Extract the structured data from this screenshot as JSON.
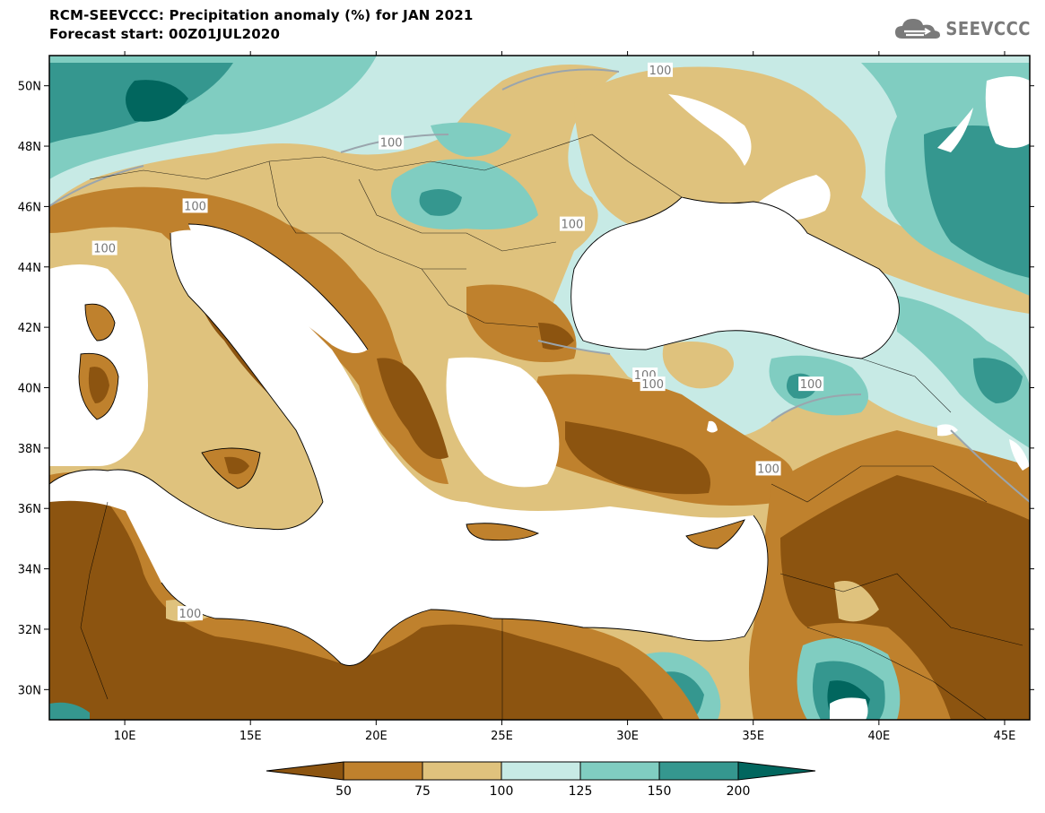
{
  "header": {
    "title_line1": "RCM-SEEVCCC: Precipitation anomaly (%) for JAN 2021",
    "title_line2": "Forecast start: 00Z01JUL2020",
    "logo_text": "SEEVCCC"
  },
  "map": {
    "lon_range": [
      7,
      46
    ],
    "lat_range": [
      29,
      51
    ],
    "x_ticks": [
      "10E",
      "15E",
      "20E",
      "25E",
      "30E",
      "35E",
      "40E",
      "45E"
    ],
    "y_ticks": [
      "50N",
      "48N",
      "46N",
      "44N",
      "42N",
      "40N",
      "38N",
      "36N",
      "34N",
      "32N",
      "30N"
    ],
    "contour_labels": [
      {
        "text": "100",
        "lon": 31.3,
        "lat": 50.5
      },
      {
        "text": "100",
        "lon": 20.6,
        "lat": 48.1
      },
      {
        "text": "100",
        "lon": 12.8,
        "lat": 46.0
      },
      {
        "text": "100",
        "lon": 27.8,
        "lat": 45.4
      },
      {
        "text": "100",
        "lon": 9.2,
        "lat": 44.6
      },
      {
        "text": "100",
        "lon": 30.7,
        "lat": 40.4
      },
      {
        "text": "100",
        "lon": 31.0,
        "lat": 40.1
      },
      {
        "text": "100",
        "lon": 37.3,
        "lat": 40.1
      },
      {
        "text": "100",
        "lon": 35.6,
        "lat": 37.3
      },
      {
        "text": "100",
        "lon": 12.6,
        "lat": 32.5
      }
    ]
  },
  "colorbar": {
    "levels": [
      "50",
      "75",
      "100",
      "125",
      "150",
      "200"
    ],
    "colors": [
      "#8c5410",
      "#bf812d",
      "#dfc27d",
      "#c7eae5",
      "#80cdc1",
      "#35978f",
      "#01665e"
    ]
  }
}
